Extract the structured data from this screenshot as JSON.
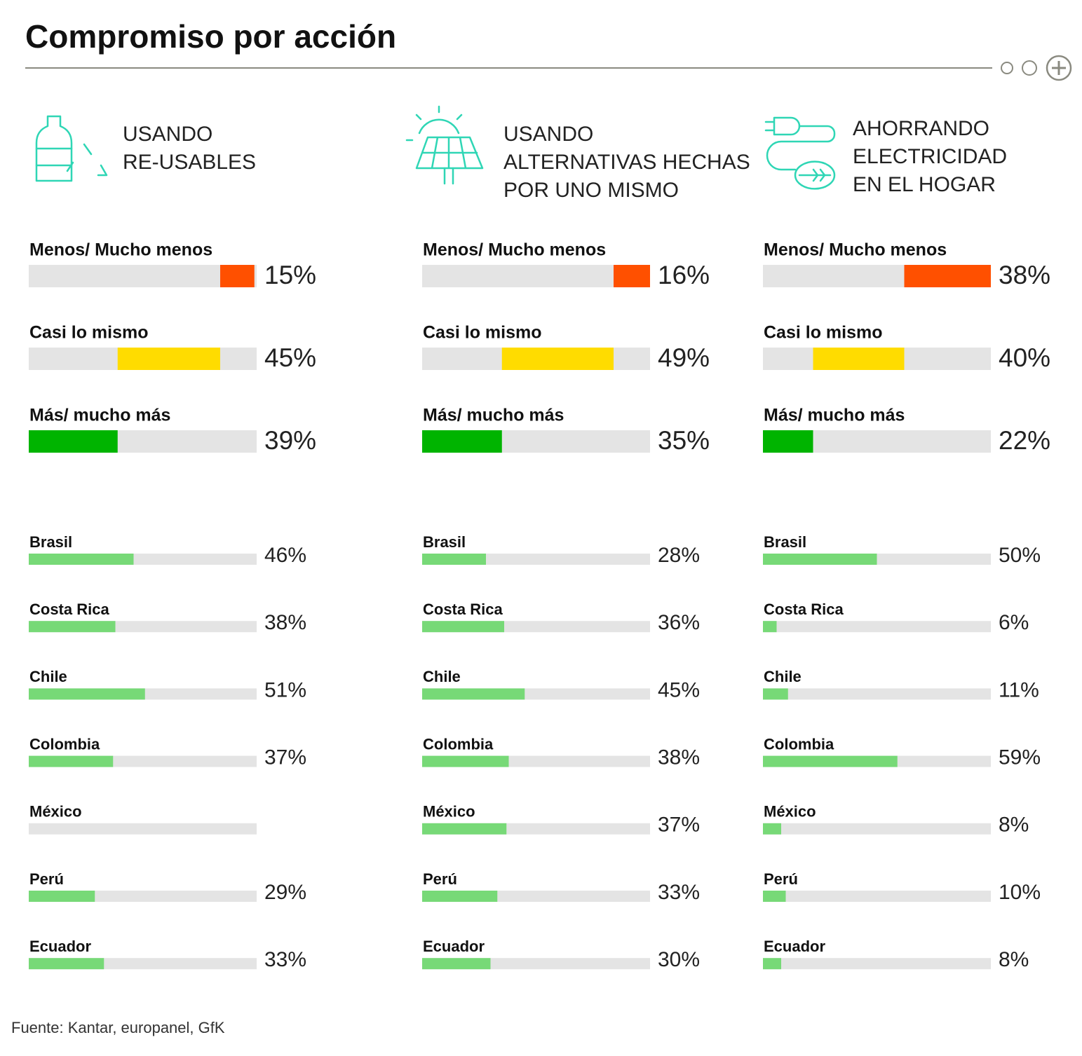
{
  "title": "Compromiso por acción",
  "source": "Fuente: Kantar, europanel, GfK",
  "chart_data": [
    {
      "type": "bar",
      "heading": [
        "USANDO",
        "RE-USABLES"
      ],
      "summary": {
        "categories": [
          "Menos/ Mucho menos",
          "Casi lo mismo",
          "Más/ mucho más"
        ],
        "values": [
          15,
          45,
          39
        ],
        "value_labels": [
          "15%",
          "45%",
          "39%"
        ],
        "colors": [
          "#ff5000",
          "#ffdc00",
          "#00b400"
        ]
      },
      "categories": [
        "Brasil",
        "Costa Rica",
        "Chile",
        "Colombia",
        "México",
        "Perú",
        "Ecuador"
      ],
      "values": [
        46,
        38,
        51,
        37,
        null,
        29,
        33
      ],
      "value_labels": [
        "46%",
        "38%",
        "51%",
        "37%",
        null,
        "29%",
        "33%"
      ],
      "color": "#77d977",
      "xlim": [
        0,
        100
      ]
    },
    {
      "type": "bar",
      "heading": [
        "USANDO",
        "ALTERNATIVAS HECHAS",
        "POR UNO MISMO"
      ],
      "summary": {
        "categories": [
          "Menos/ Mucho menos",
          "Casi lo mismo",
          "Más/ mucho más"
        ],
        "values": [
          16,
          49,
          35
        ],
        "value_labels": [
          "16%",
          "49%",
          "35%"
        ],
        "colors": [
          "#ff5000",
          "#ffdc00",
          "#00b400"
        ]
      },
      "categories": [
        "Brasil",
        "Costa Rica",
        "Chile",
        "Colombia",
        "México",
        "Perú",
        "Ecuador"
      ],
      "values": [
        28,
        36,
        45,
        38,
        37,
        33,
        30
      ],
      "value_labels": [
        "28%",
        "36%",
        "45%",
        "38%",
        "37%",
        "33%",
        "30%"
      ],
      "color": "#77d977",
      "xlim": [
        0,
        100
      ]
    },
    {
      "type": "bar",
      "heading": [
        "AHORRANDO",
        "ELECTRICIDAD",
        "EN EL HOGAR"
      ],
      "summary": {
        "categories": [
          "Menos/ Mucho menos",
          "Casi lo mismo",
          "Más/ mucho más"
        ],
        "values": [
          38,
          40,
          22
        ],
        "value_labels": [
          "38%",
          "40%",
          "22%"
        ],
        "colors": [
          "#ff5000",
          "#ffdc00",
          "#00b400"
        ]
      },
      "categories": [
        "Brasil",
        "Costa Rica",
        "Chile",
        "Colombia",
        "México",
        "Perú",
        "Ecuador"
      ],
      "values": [
        50,
        6,
        11,
        59,
        8,
        10,
        8
      ],
      "value_labels": [
        "50%",
        "6%",
        "11%",
        "59%",
        "8%",
        "10%",
        "8%"
      ],
      "color": "#77d977",
      "xlim": [
        0,
        100
      ]
    }
  ]
}
